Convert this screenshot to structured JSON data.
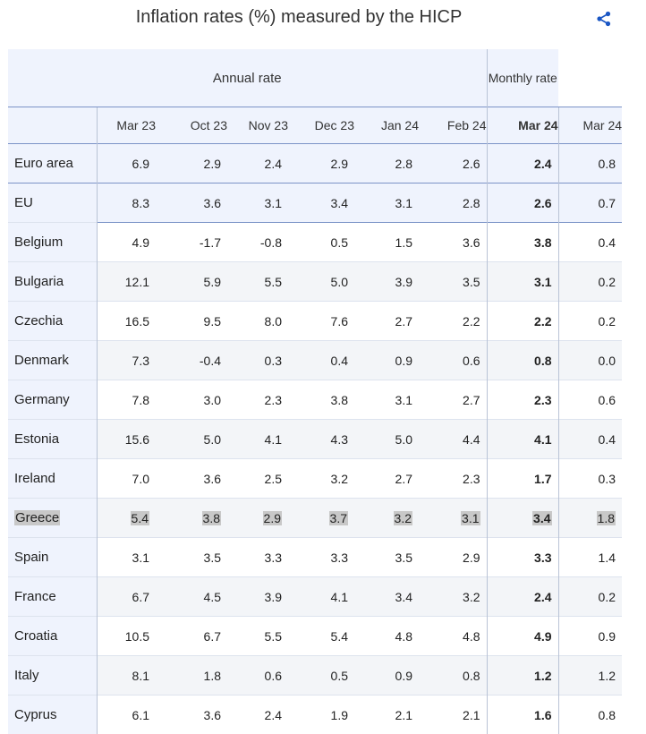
{
  "title": "Inflation rates (%) measured by the HICP",
  "share_icon": "share-icon",
  "header": {
    "annual_label": "Annual rate",
    "monthly_label": "Monthly rate",
    "columns": [
      "Mar 23",
      "Oct 23",
      "Nov 23",
      "Dec 23",
      "Jan 24",
      "Feb 24",
      "Mar 24",
      "Mar 24"
    ]
  },
  "rows": [
    {
      "name": "Euro area",
      "values": [
        "6.9",
        "2.9",
        "2.4",
        "2.9",
        "2.8",
        "2.6",
        "2.4",
        "0.8"
      ],
      "kind": "aggregate"
    },
    {
      "name": "EU",
      "values": [
        "8.3",
        "3.6",
        "3.1",
        "3.4",
        "3.1",
        "2.8",
        "2.6",
        "0.7"
      ],
      "kind": "aggregate"
    },
    {
      "name": "Belgium",
      "values": [
        "4.9",
        "-1.7",
        "-0.8",
        "0.5",
        "1.5",
        "3.6",
        "3.8",
        "0.4"
      ],
      "kind": "country"
    },
    {
      "name": "Bulgaria",
      "values": [
        "12.1",
        "5.9",
        "5.5",
        "5.0",
        "3.9",
        "3.5",
        "3.1",
        "0.2"
      ],
      "kind": "country"
    },
    {
      "name": "Czechia",
      "values": [
        "16.5",
        "9.5",
        "8.0",
        "7.6",
        "2.7",
        "2.2",
        "2.2",
        "0.2"
      ],
      "kind": "country"
    },
    {
      "name": "Denmark",
      "values": [
        "7.3",
        "-0.4",
        "0.3",
        "0.4",
        "0.9",
        "0.6",
        "0.8",
        "0.0"
      ],
      "kind": "country"
    },
    {
      "name": "Germany",
      "values": [
        "7.8",
        "3.0",
        "2.3",
        "3.8",
        "3.1",
        "2.7",
        "2.3",
        "0.6"
      ],
      "kind": "country"
    },
    {
      "name": "Estonia",
      "values": [
        "15.6",
        "5.0",
        "4.1",
        "4.3",
        "5.0",
        "4.4",
        "4.1",
        "0.4"
      ],
      "kind": "country"
    },
    {
      "name": "Ireland",
      "values": [
        "7.0",
        "3.6",
        "2.5",
        "3.2",
        "2.7",
        "2.3",
        "1.7",
        "0.3"
      ],
      "kind": "country"
    },
    {
      "name": "Greece",
      "values": [
        "5.4",
        "3.8",
        "2.9",
        "3.7",
        "3.2",
        "3.1",
        "3.4",
        "1.8"
      ],
      "kind": "country",
      "highlighted": true
    },
    {
      "name": "Spain",
      "values": [
        "3.1",
        "3.5",
        "3.3",
        "3.3",
        "3.5",
        "2.9",
        "3.3",
        "1.4"
      ],
      "kind": "country"
    },
    {
      "name": "France",
      "values": [
        "6.7",
        "4.5",
        "3.9",
        "4.1",
        "3.4",
        "3.2",
        "2.4",
        "0.2"
      ],
      "kind": "country"
    },
    {
      "name": "Croatia",
      "values": [
        "10.5",
        "6.7",
        "5.5",
        "5.4",
        "4.8",
        "4.8",
        "4.9",
        "0.9"
      ],
      "kind": "country"
    },
    {
      "name": "Italy",
      "values": [
        "8.1",
        "1.8",
        "0.6",
        "0.5",
        "0.9",
        "0.8",
        "1.2",
        "1.2"
      ],
      "kind": "country"
    },
    {
      "name": "Cyprus",
      "values": [
        "6.1",
        "3.6",
        "2.4",
        "1.9",
        "2.1",
        "2.1",
        "1.6",
        "0.8"
      ],
      "kind": "country"
    }
  ],
  "colors": {
    "header_bg": "#eff3fd",
    "header_rule": "#7b93c7",
    "share_icon": "#1a56c4",
    "highlight": "#c8c8c8",
    "stripe": "#f3f5f8"
  }
}
